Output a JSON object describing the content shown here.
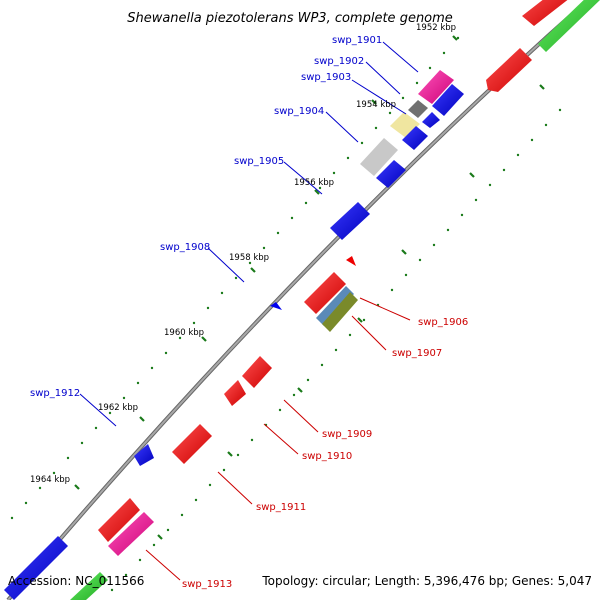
{
  "title": "Shewanella piezotolerans WP3, complete genome",
  "footer": {
    "accession": "Accession: NC_011566",
    "stats": "Topology: circular; Length: 5,396,476 bp; Genes: 5,047"
  },
  "kbp_labels": [
    "1952 kbp",
    "1954 kbp",
    "1956 kbp",
    "1958 kbp",
    "1960 kbp",
    "1962 kbp",
    "1964 kbp"
  ],
  "gene_labels": {
    "swp_1901": "swp_1901",
    "swp_1902": "swp_1902",
    "swp_1903": "swp_1903",
    "swp_1904": "swp_1904",
    "swp_1905": "swp_1905",
    "swp_1908": "swp_1908",
    "swp_1912": "swp_1912",
    "swp_1906": "swp_1906",
    "swp_1907": "swp_1907",
    "swp_1909": "swp_1909",
    "swp_1910": "swp_1910",
    "swp_1911": "swp_1911",
    "swp_1913": "swp_1913"
  },
  "colors": {
    "blue_label": "#0000cc",
    "red_label": "#cc0000",
    "backbone": "#808080",
    "tick_green": "#1a7a1a",
    "gene_red": "#ee0000",
    "gene_blue": "#0000ee",
    "gene_green": "#22cc22",
    "gene_magenta": "#ee1199",
    "gene_yellow": "#f0e6a0",
    "gene_gray": "#c8c8c8",
    "gene_darkgray": "#707070",
    "gene_steelblue": "#5a8ab8",
    "gene_olive": "#7a8a2a"
  }
}
